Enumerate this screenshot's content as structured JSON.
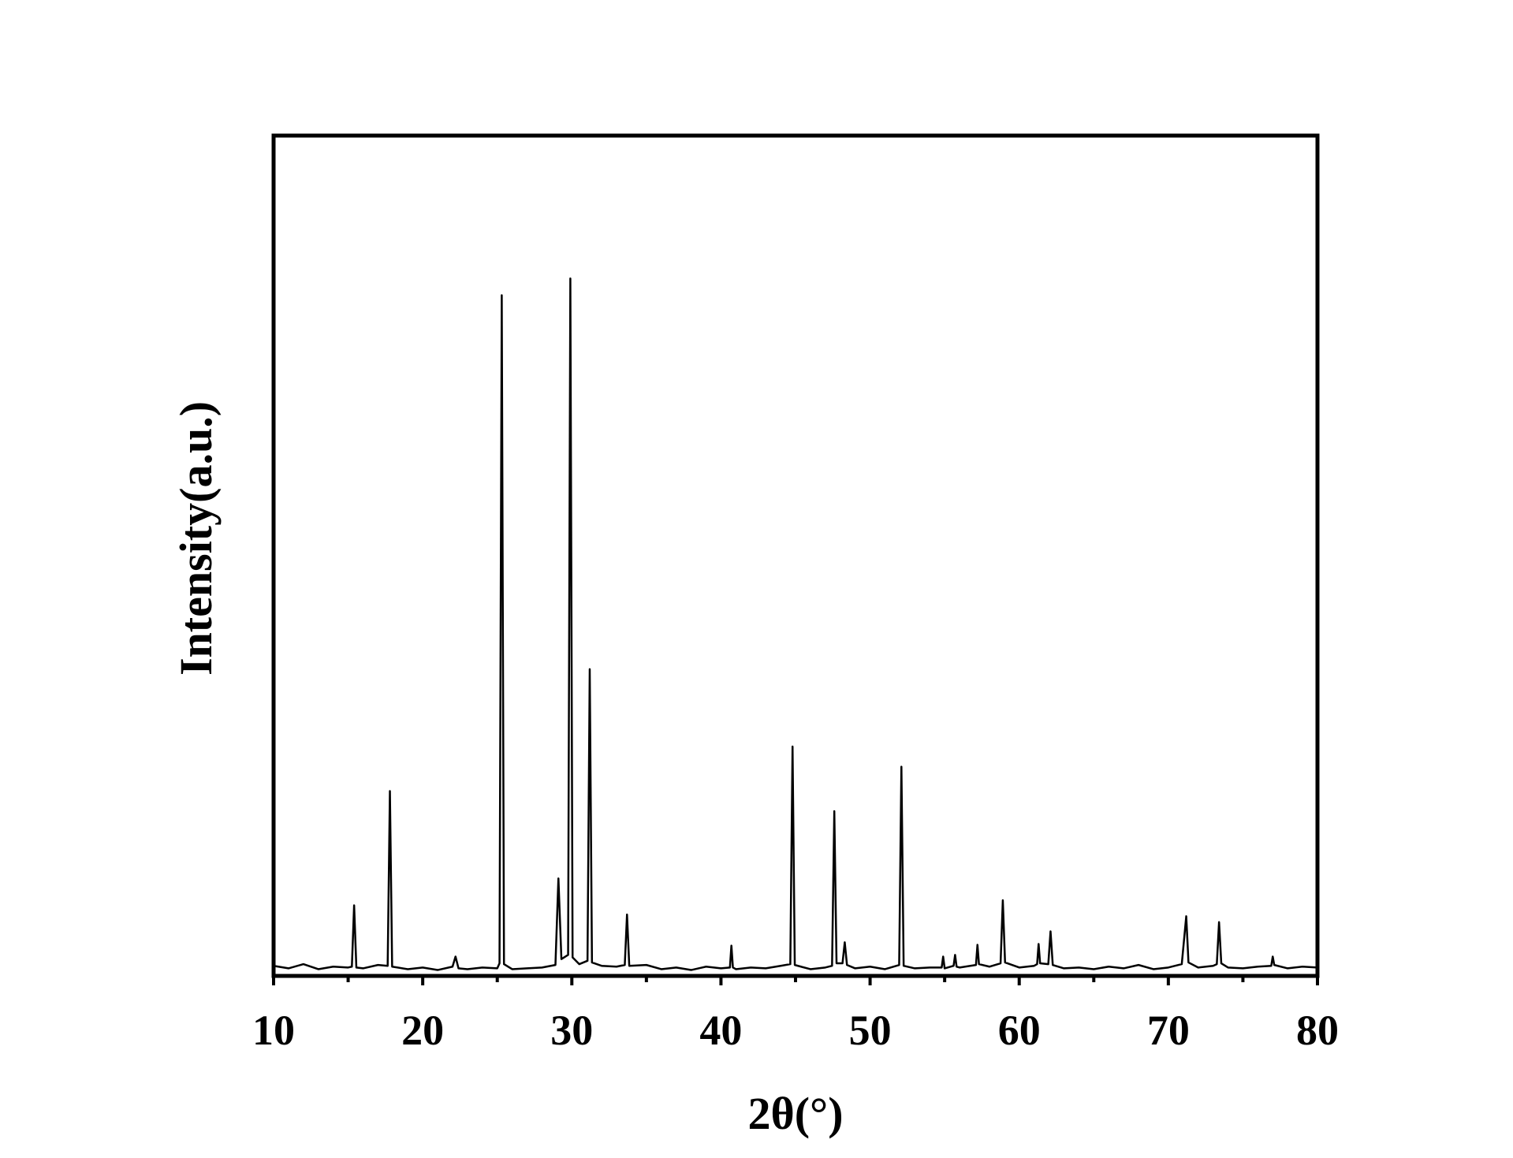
{
  "chart_data": {
    "type": "line",
    "x_label": "2θ(°)",
    "y_label": "Intensity(a.u.)",
    "xlim": [
      10,
      80
    ],
    "xticks": [
      10,
      20,
      30,
      40,
      50,
      60,
      70,
      80
    ],
    "xminorticks": [
      15,
      25,
      35,
      45,
      55,
      65,
      75
    ],
    "ylim": [
      0,
      100
    ],
    "series": [
      {
        "color": "#000000",
        "x": [
          10,
          11,
          12,
          13,
          14,
          15,
          15.25,
          15.4,
          15.55,
          16,
          17,
          17.65,
          17.8,
          17.95,
          19,
          20,
          21,
          22,
          22.2,
          22.4,
          23,
          24,
          25,
          25.15,
          25.3,
          25.45,
          26,
          27,
          28,
          28.9,
          29.1,
          29.3,
          29.75,
          29.9,
          30.05,
          30.5,
          31.05,
          31.2,
          31.35,
          32,
          33,
          33.55,
          33.7,
          33.85,
          35,
          36,
          37,
          38,
          39,
          40,
          40.6,
          40.7,
          40.8,
          41,
          42,
          43,
          44,
          44.65,
          44.8,
          44.95,
          46,
          47,
          47.45,
          47.6,
          47.75,
          48.15,
          48.3,
          48.45,
          49,
          50,
          51,
          51.95,
          52.1,
          52.25,
          53,
          54,
          54.8,
          54.9,
          55,
          55.6,
          55.7,
          55.8,
          56,
          57.1,
          57.2,
          57.3,
          58,
          58.75,
          58.9,
          59.05,
          60,
          61,
          61.2,
          61.3,
          61.4,
          61.95,
          62.1,
          62.25,
          63,
          64,
          65,
          66,
          67,
          68,
          69,
          70,
          70.9,
          71.2,
          71.35,
          72,
          73,
          73.25,
          73.4,
          73.55,
          74,
          75,
          76,
          76.9,
          77,
          77.1,
          78,
          79,
          80
        ],
        "values": [
          1.2,
          0.9,
          1.4,
          0.8,
          1.1,
          1.0,
          1.1,
          8.4,
          1.0,
          0.9,
          1.3,
          1.2,
          22,
          1.1,
          0.8,
          1.0,
          0.7,
          1.1,
          2.3,
          0.9,
          0.8,
          1.0,
          0.9,
          1.5,
          81,
          1.4,
          0.8,
          0.9,
          1.0,
          1.3,
          11.6,
          2.0,
          2.5,
          83,
          2.2,
          1.4,
          1.8,
          36.5,
          1.6,
          1.2,
          1.1,
          1.3,
          7.3,
          1.2,
          1.3,
          0.8,
          1.0,
          0.7,
          1.1,
          0.9,
          1.0,
          3.6,
          1.0,
          0.8,
          1.0,
          0.9,
          1.2,
          1.4,
          27.3,
          1.3,
          0.8,
          1.0,
          1.2,
          19.6,
          1.5,
          1.5,
          4.0,
          1.3,
          0.9,
          1.1,
          0.8,
          1.3,
          24.9,
          1.2,
          0.9,
          1.0,
          1.0,
          2.3,
          0.9,
          1.2,
          2.5,
          1.1,
          1.0,
          1.3,
          3.7,
          1.4,
          1.1,
          1.5,
          9.0,
          1.6,
          1.0,
          1.2,
          1.4,
          3.8,
          1.5,
          1.4,
          5.3,
          1.3,
          0.9,
          1.0,
          0.8,
          1.1,
          0.9,
          1.3,
          0.8,
          1.0,
          1.4,
          7.1,
          1.6,
          1.0,
          1.2,
          1.4,
          6.4,
          1.5,
          1.0,
          0.9,
          1.1,
          1.2,
          2.3,
          1.3,
          0.9,
          1.1,
          1.0
        ]
      }
    ]
  }
}
